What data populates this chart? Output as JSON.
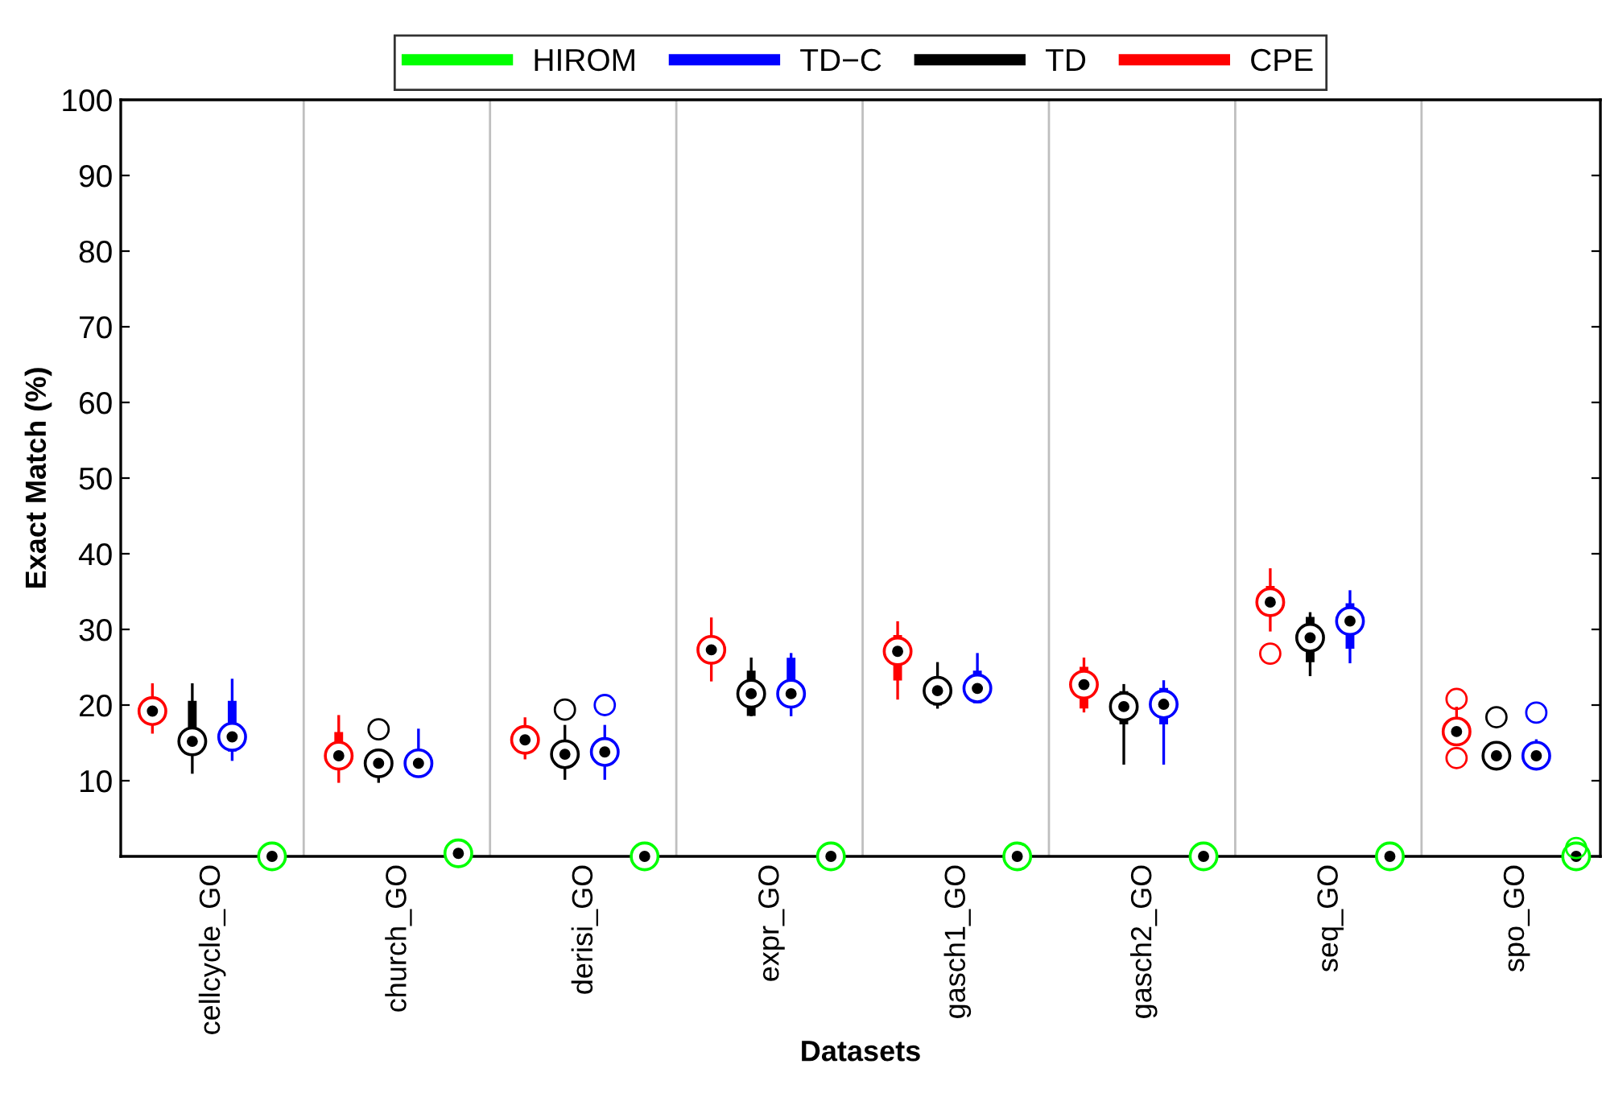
{
  "chart_data": {
    "type": "box",
    "xlabel": "Datasets",
    "ylabel": "Exact Match (%)",
    "categories": [
      "cellcycle_GO",
      "church_GO",
      "derisi_GO",
      "expr_GO",
      "gasch1_GO",
      "gasch2_GO",
      "seq_GO",
      "spo_GO"
    ],
    "ylim": [
      0,
      100
    ],
    "yticks": [
      10,
      20,
      30,
      40,
      50,
      60,
      70,
      80,
      90,
      100
    ],
    "legend": "top",
    "grid": false,
    "series": [
      {
        "name": "HIROM",
        "color": "#00ff00",
        "boxes": [
          {
            "low": 0,
            "q1": 0,
            "median": 0,
            "q3": 0,
            "high": 0
          },
          {
            "low": 0.4,
            "q1": 0.4,
            "median": 0.4,
            "q3": 0.4,
            "high": 0.4
          },
          {
            "low": 0,
            "q1": 0,
            "median": 0,
            "q3": 0,
            "high": 0
          },
          {
            "low": 0,
            "q1": 0,
            "median": 0,
            "q3": 0,
            "high": 0
          },
          {
            "low": 0,
            "q1": 0,
            "median": 0,
            "q3": 0,
            "high": 0
          },
          {
            "low": 0,
            "q1": 0,
            "median": 0,
            "q3": 0,
            "high": 0
          },
          {
            "low": 0,
            "q1": 0,
            "median": 0,
            "q3": 0,
            "high": 0
          },
          {
            "low": 0,
            "q1": 0,
            "median": 0,
            "q3": 0,
            "high": 0,
            "outliers": [
              1.1
            ]
          }
        ]
      },
      {
        "name": "TD−C",
        "color": "#0000ff",
        "boxes": [
          {
            "low": 12.8,
            "q1": 14.0,
            "median": 15.8,
            "q3": 20.4,
            "high": 23.3
          },
          {
            "low": 10.6,
            "q1": 12.0,
            "median": 12.3,
            "q3": 12.6,
            "high": 16.7
          },
          {
            "low": 10.3,
            "q1": 12.8,
            "median": 13.8,
            "q3": 15.3,
            "high": 17.2,
            "outliers": [
              20.0
            ]
          },
          {
            "low": 18.7,
            "q1": 19.9,
            "median": 21.5,
            "q3": 26.1,
            "high": 26.7
          },
          {
            "low": 20.4,
            "q1": 20.4,
            "median": 22.2,
            "q3": 24.4,
            "high": 26.7
          },
          {
            "low": 12.3,
            "q1": 17.6,
            "median": 20.1,
            "q3": 22.1,
            "high": 23.1
          },
          {
            "low": 25.7,
            "q1": 27.6,
            "median": 31.1,
            "q3": 33.3,
            "high": 35.0
          },
          {
            "low": 13.3,
            "q1": 13.3,
            "median": 13.3,
            "q3": 13.5,
            "high": 15.3,
            "outliers": [
              19.0
            ]
          }
        ]
      },
      {
        "name": "TD",
        "color": "#000000",
        "boxes": [
          {
            "low": 11.1,
            "q1": 13.5,
            "median": 15.2,
            "q3": 20.4,
            "high": 22.7
          },
          {
            "low": 9.9,
            "q1": 12.0,
            "median": 12.3,
            "q3": 12.6,
            "high": 14.0,
            "outliers": [
              16.8
            ]
          },
          {
            "low": 10.3,
            "q1": 13.0,
            "median": 13.5,
            "q3": 14.0,
            "high": 17.2,
            "outliers": [
              19.4
            ]
          },
          {
            "low": 18.7,
            "q1": 18.7,
            "median": 21.5,
            "q3": 24.4,
            "high": 26.1
          },
          {
            "low": 19.7,
            "q1": 20.1,
            "median": 21.9,
            "q3": 22.8,
            "high": 25.5
          },
          {
            "low": 12.3,
            "q1": 17.6,
            "median": 19.8,
            "q3": 21.7,
            "high": 22.6
          },
          {
            "low": 24.0,
            "q1": 25.8,
            "median": 28.9,
            "q3": 31.5,
            "high": 32.1
          },
          {
            "low": 13.3,
            "q1": 13.3,
            "median": 13.3,
            "q3": 13.3,
            "high": 13.3,
            "outliers": [
              18.4
            ]
          }
        ]
      },
      {
        "name": "CPE",
        "color": "#ff0000",
        "boxes": [
          {
            "low": 16.4,
            "q1": 17.8,
            "median": 19.2,
            "q3": 19.6,
            "high": 22.7
          },
          {
            "low": 9.9,
            "q1": 11.8,
            "median": 13.3,
            "q3": 16.3,
            "high": 18.5
          },
          {
            "low": 13.0,
            "q1": 13.9,
            "median": 15.4,
            "q3": 16.0,
            "high": 18.2
          },
          {
            "low": 23.3,
            "q1": 25.7,
            "median": 27.3,
            "q3": 28.4,
            "high": 31.4
          },
          {
            "low": 20.9,
            "q1": 23.4,
            "median": 27.1,
            "q3": 29.1,
            "high": 30.9
          },
          {
            "low": 19.2,
            "q1": 19.7,
            "median": 22.7,
            "q3": 24.9,
            "high": 26.1
          },
          {
            "low": 29.9,
            "q1": 33.0,
            "median": 33.6,
            "q3": 35.6,
            "high": 37.9,
            "outliers": [
              26.8
            ]
          },
          {
            "low": 16.5,
            "q1": 16.5,
            "median": 16.5,
            "q3": 16.6,
            "high": 19.6,
            "outliers": [
              20.8,
              13.0
            ]
          }
        ]
      }
    ]
  }
}
